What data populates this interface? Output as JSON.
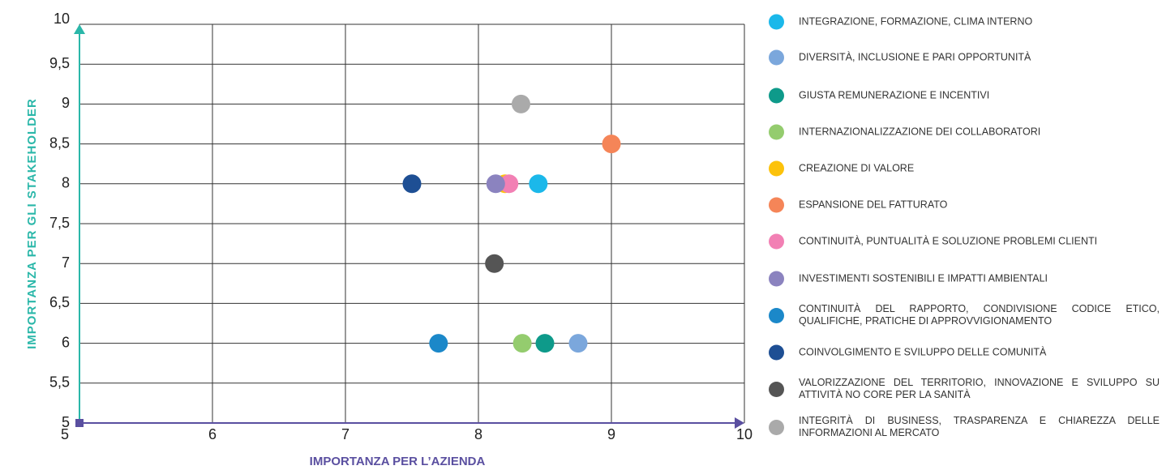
{
  "chart_data": {
    "type": "scatter",
    "xlabel": "IMPORTANZA PER L’AZIENDA",
    "ylabel": "IMPORTANZA PER GLI STAKEHOLDER",
    "xlim": [
      5,
      10
    ],
    "xticks": [
      5,
      6,
      7,
      8,
      9,
      10
    ],
    "ylim": [
      5,
      10
    ],
    "yticks": [
      5,
      {
        "value": 5.5,
        "label": "5,5"
      },
      6,
      {
        "value": 6.5,
        "label": "6,5"
      },
      7,
      {
        "value": 7.5,
        "label": "7,5"
      },
      8,
      {
        "value": 8.5,
        "label": "8,5"
      },
      9,
      {
        "value": 9.5,
        "label": "9,5"
      },
      10
    ],
    "grid": true,
    "series": [
      {
        "name": "INTEGRAZIONE, FORMAZIONE, CLIMA INTERNO",
        "color": "#1bb8ea",
        "x": [
          8.45
        ],
        "values": [
          8
        ]
      },
      {
        "name": "DIVERSITÀ, INCLUSIONE E PARI OPPORTUNITÀ",
        "color": "#7ba7dc",
        "x": [
          8.75
        ],
        "values": [
          6
        ]
      },
      {
        "name": "GIUSTA REMUNERAZIONE E INCENTIVI",
        "color": "#0e9a8a",
        "x": [
          8.5
        ],
        "values": [
          6
        ]
      },
      {
        "name": "INTERNAZIONALIZZAZIONE DEI COLLABORATORI",
        "color": "#94cc6e",
        "x": [
          8.33
        ],
        "values": [
          6
        ]
      },
      {
        "name": "CREAZIONE DI VALORE",
        "color": "#fcc20b",
        "x": [
          8.2
        ],
        "values": [
          8
        ]
      },
      {
        "name": "ESPANSIONE DEL FATTURATO",
        "color": "#f58558",
        "x": [
          9
        ],
        "values": [
          8.5
        ]
      },
      {
        "name": "CONTINUITÀ, PUNTUALITÀ E SOLUZIONE PROBLEMI CLIENTI",
        "color": "#f280b4",
        "x": [
          8.23
        ],
        "values": [
          8
        ]
      },
      {
        "name": "INVESTIMENTI SOSTENIBILI E IMPATTI AMBIENTALI",
        "color": "#8b83bf",
        "x": [
          8.13
        ],
        "values": [
          8
        ]
      },
      {
        "name": "CONTINUITÀ DEL RAPPORTO, CONDIVISIONE CODICE ETICO, QUALIFICHE, PRATICHE DI APPROVVIGIONAMENTO",
        "color": "#1b88c9",
        "x": [
          7.7
        ],
        "values": [
          6
        ]
      },
      {
        "name": "COINVOLGIMENTO E SVILUPPO DELLE COMUNITÀ",
        "color": "#1e4f94",
        "x": [
          7.5
        ],
        "values": [
          8
        ]
      },
      {
        "name": "VALORIZZAZIONE DEL TERRITORIO, INNOVAZIONE E SVILUPPO SU ATTIVITÀ NO CORE PER LA SANITÀ",
        "color": "#555555",
        "x": [
          8.12
        ],
        "values": [
          7
        ]
      },
      {
        "name": "INTEGRITÀ DI BUSINESS, TRASPARENZA E CHIAREZZA DELLE INFORMAZIONI AL MERCATO",
        "color": "#aaaaaa",
        "x": [
          8.32
        ],
        "values": [
          9
        ]
      }
    ]
  }
}
